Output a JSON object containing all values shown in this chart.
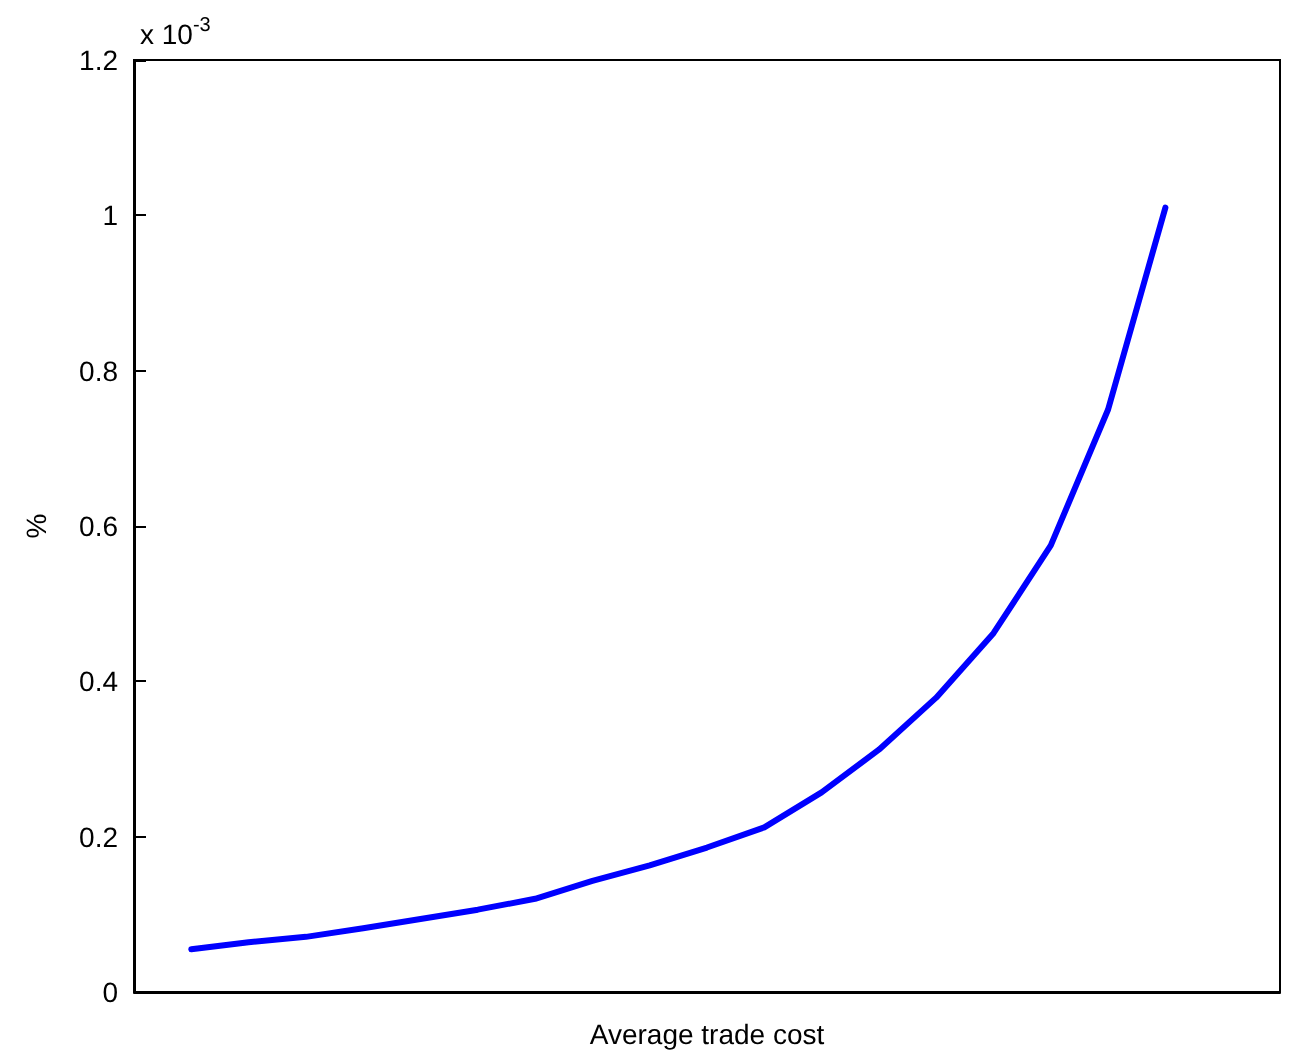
{
  "chart_data": {
    "type": "line",
    "xlabel": "Average trade cost",
    "ylabel": "%",
    "annotations": [
      "x 10$^{-3}$"
    ],
    "categories": [
      null,
      null,
      null,
      null,
      null,
      null,
      null,
      null,
      null,
      null,
      null,
      null,
      null,
      null,
      null,
      null,
      null,
      null,
      null,
      null,
      null
    ],
    "series": [
      {
        "color": "#0000ff",
        "values": [
          null,
          0.055,
          0.064,
          0.071,
          0.082,
          0.094,
          0.106,
          0.12,
          0.143,
          0.163,
          0.186,
          0.212,
          0.257,
          0.312,
          0.379,
          0.462,
          0.575,
          0.75,
          1.01,
          null,
          null
        ]
      }
    ],
    "ylim": [
      0,
      1.2
    ],
    "yticks": [
      0,
      0.2,
      0.4,
      0.6,
      0.8,
      1,
      1.2
    ],
    "marker": "none",
    "line_style": "solid",
    "tick_labels": "y"
  }
}
